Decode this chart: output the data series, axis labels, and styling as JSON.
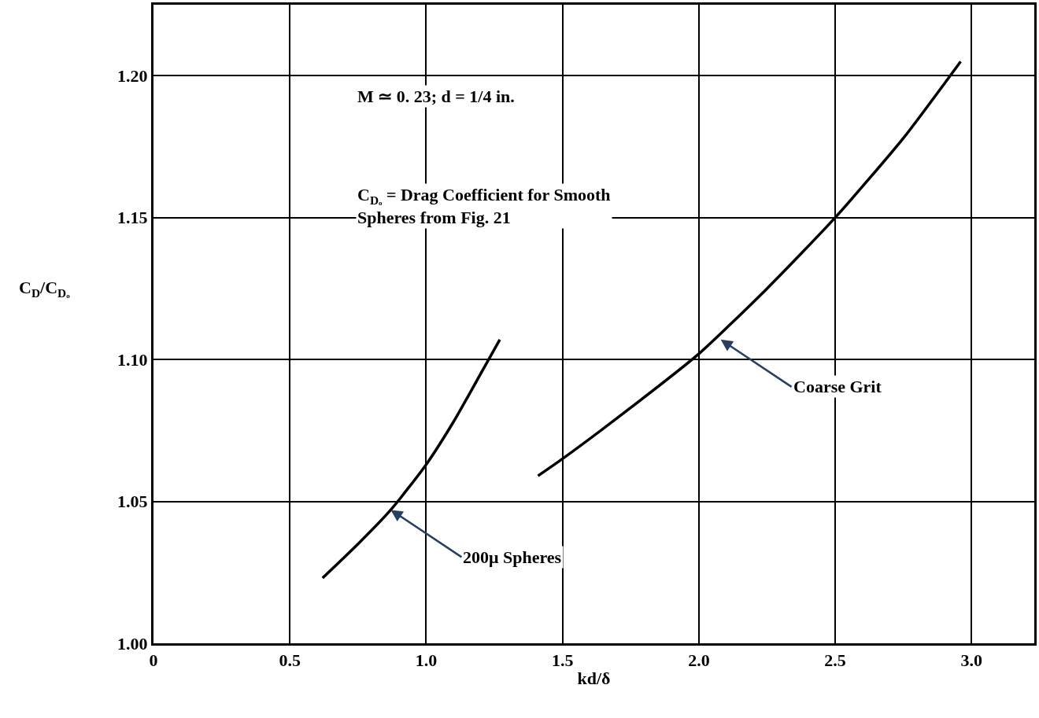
{
  "chart_data": {
    "type": "line",
    "xlabel": "kd/δ",
    "ylabel": "C$_{D}$/C$_{Dₒ}$",
    "xlim": [
      0,
      3.23
    ],
    "xticks": [
      0,
      0.5,
      {
        "value": 1.0,
        "label": "1.0"
      },
      1.5,
      {
        "value": 2.0,
        "label": "2.0"
      },
      2.5,
      {
        "value": 3.0,
        "label": "3.0"
      }
    ],
    "ylim": [
      1.0,
      1.225
    ],
    "yticks": [
      {
        "value": 1.0,
        "label": "1.00"
      },
      1.05,
      {
        "value": 1.1,
        "label": "1.10"
      },
      1.15,
      {
        "value": 1.2,
        "label": "1.20"
      }
    ],
    "grid": true,
    "legend": false,
    "marker": "none",
    "line_style": "solid",
    "series": [
      {
        "color": "#000000",
        "x": [
          0.62,
          0.75,
          0.87,
          1.0,
          1.1,
          1.2,
          1.27
        ],
        "values": [
          1.023,
          1.035,
          1.047,
          1.063,
          1.078,
          1.095,
          1.107
        ]
      },
      {
        "color": "#000000",
        "x": [
          1.41,
          1.5,
          1.75,
          2.0,
          2.25,
          2.5,
          2.75,
          2.96
        ],
        "values": [
          1.059,
          1.065,
          1.083,
          1.102,
          1.125,
          1.15,
          1.178,
          1.205
        ]
      }
    ],
    "annotations": [
      "M ≃ 0. 23; d = 1/4 in.",
      "C$_{Dₒ}$ = Drag Coefficient for Smooth\nSpheres from Fig. 21",
      {
        "text": "Coarse Grit",
        "x": 2.08,
        "y": 1.107
      },
      {
        "text": "200μ Spheres",
        "x": 0.87,
        "y": 1.047
      }
    ]
  }
}
